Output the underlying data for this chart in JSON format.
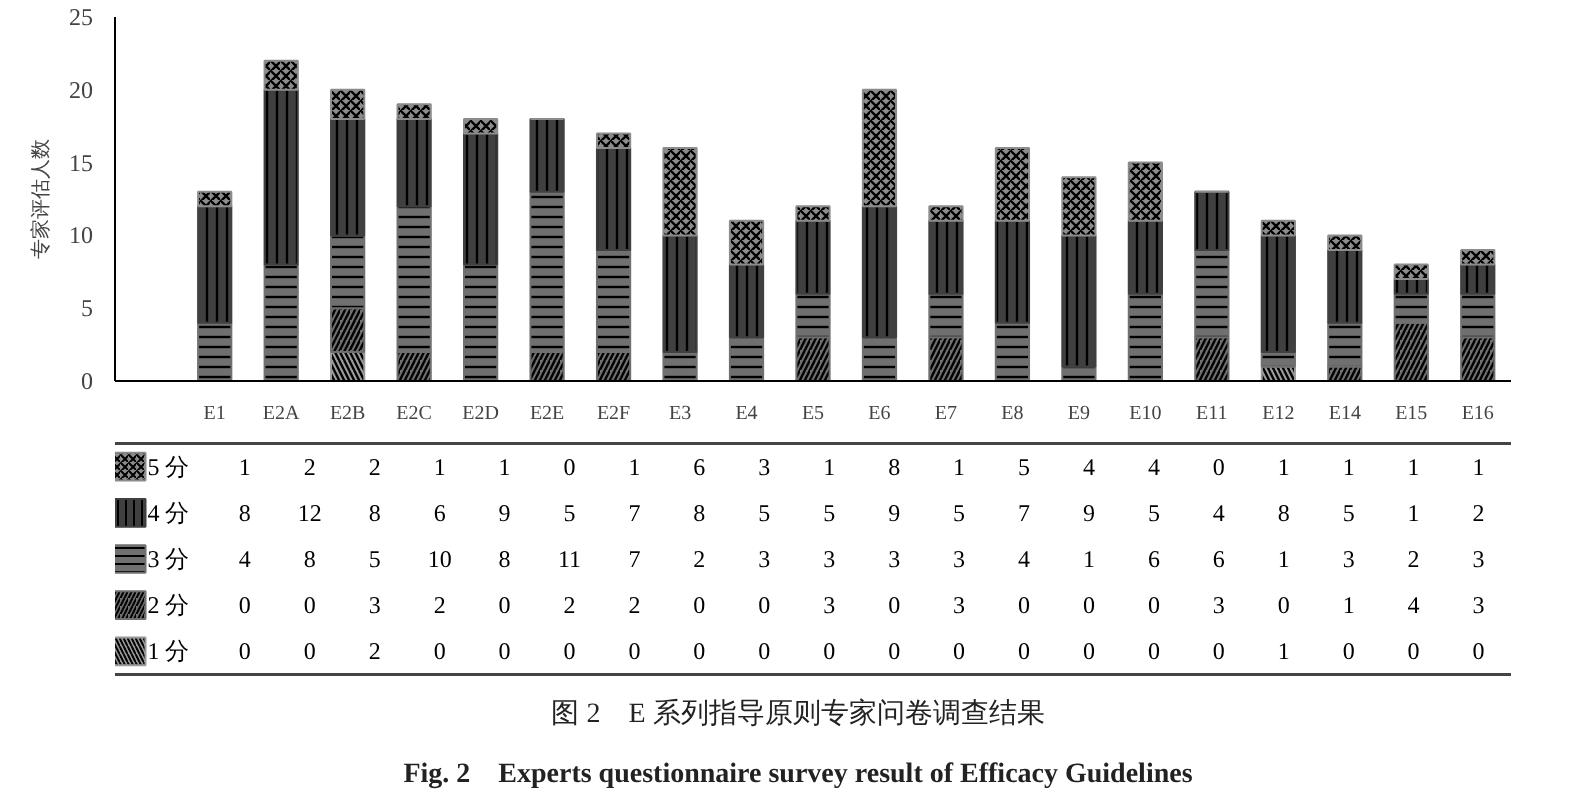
{
  "chart_data": {
    "type": "bar",
    "stacked": true,
    "title": "图 2　E 系列指导原则专家问卷调查结果",
    "subtitle": "Fig. 2　Experts questionnaire survey result of Efficacy Guidelines",
    "ylabel": "专家评估人数",
    "categories": [
      "E1",
      "E2A",
      "E2B",
      "E2C",
      "E2D",
      "E2E",
      "E2F",
      "E3",
      "E4",
      "E5",
      "E6",
      "E7",
      "E8",
      "E9",
      "E10",
      "E11",
      "E12",
      "E14",
      "E15",
      "E16"
    ],
    "series": [
      {
        "name": "1 分",
        "color": "#9a9a9a",
        "values": [
          0,
          0,
          2,
          0,
          0,
          0,
          0,
          0,
          0,
          0,
          0,
          0,
          0,
          0,
          0,
          0,
          1,
          0,
          0,
          0
        ]
      },
      {
        "name": "2 分",
        "color": "#6e6e6e",
        "values": [
          0,
          0,
          3,
          2,
          0,
          2,
          2,
          0,
          0,
          3,
          0,
          3,
          0,
          0,
          0,
          3,
          0,
          1,
          4,
          3
        ]
      },
      {
        "name": "3 分",
        "color": "#707070",
        "values": [
          4,
          8,
          5,
          10,
          8,
          11,
          7,
          2,
          3,
          3,
          3,
          3,
          4,
          1,
          6,
          6,
          1,
          3,
          2,
          3
        ]
      },
      {
        "name": "4 分",
        "color": "#404040",
        "values": [
          8,
          12,
          8,
          6,
          9,
          5,
          7,
          8,
          5,
          5,
          9,
          5,
          7,
          9,
          5,
          4,
          8,
          5,
          1,
          2
        ]
      },
      {
        "name": "5 分",
        "color": "#8c8c8c",
        "values": [
          1,
          2,
          2,
          1,
          1,
          0,
          1,
          6,
          3,
          1,
          8,
          1,
          5,
          4,
          4,
          0,
          1,
          1,
          1,
          1
        ]
      }
    ],
    "ylim": [
      0,
      25
    ],
    "yticks": [
      0,
      5,
      10,
      15,
      20,
      25
    ],
    "grid": false,
    "legend": "bottom",
    "data_labels": true
  }
}
